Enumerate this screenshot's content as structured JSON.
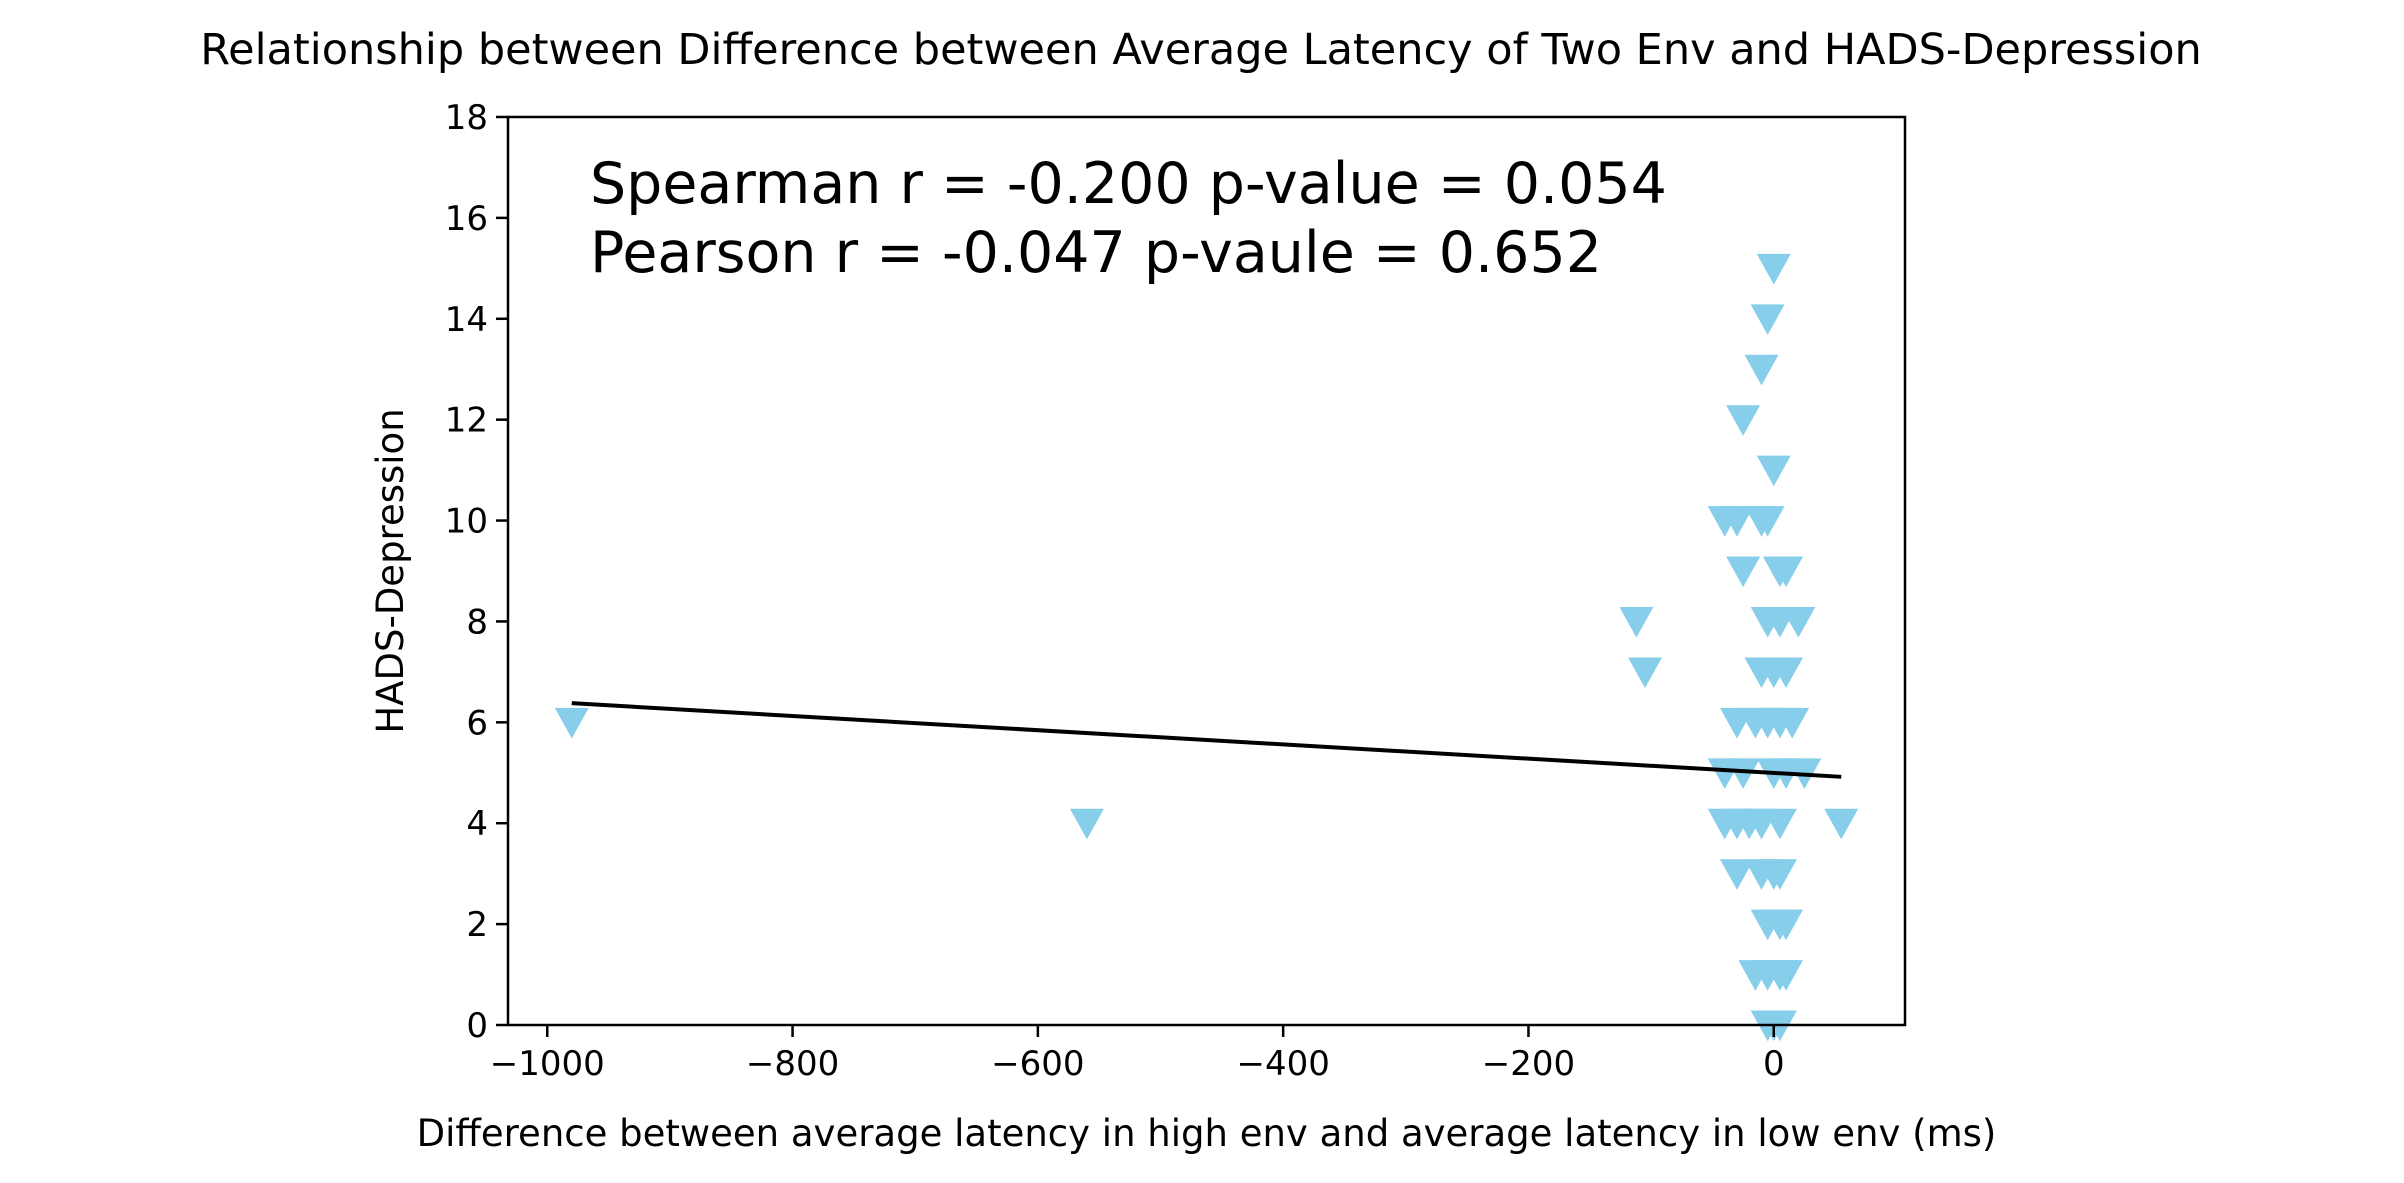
{
  "chart_data": {
    "type": "scatter",
    "title": "Relationship between Difference between Average Latency of Two Env and HADS-Depression",
    "xlabel": "Difference between average latency in high env and average latency in low env (ms)",
    "ylabel": "HADS-Depression",
    "xlim": [
      -1032,
      107
    ],
    "ylim": [
      0,
      18
    ],
    "xticks": [
      -1000,
      -800,
      -600,
      -400,
      -200,
      0
    ],
    "xtick_labels": [
      "−1000",
      "−800",
      "−600",
      "−400",
      "−200",
      "0"
    ],
    "yticks": [
      0,
      2,
      4,
      6,
      8,
      10,
      12,
      14,
      16,
      18
    ],
    "ytick_labels": [
      "0",
      "2",
      "4",
      "6",
      "8",
      "10",
      "12",
      "14",
      "16",
      "18"
    ],
    "grid": false,
    "legend": "none",
    "marker": "triangle-down",
    "marker_color": "#87ceeb",
    "line_color": "#000000",
    "annotations": [
      "Spearman r = -0.200 p-value = 0.054",
      "Pearson r = -0.047 p-vaule = 0.652"
    ],
    "regression_line": {
      "x": [
        -980,
        55
      ],
      "y": [
        6.38,
        4.92
      ]
    },
    "series": [
      {
        "points": [
          [
            -980,
            6
          ],
          [
            -560,
            4
          ],
          [
            -112,
            8
          ],
          [
            -105,
            7
          ],
          [
            0,
            15
          ],
          [
            -5,
            14
          ],
          [
            -10,
            13
          ],
          [
            -25,
            12
          ],
          [
            0,
            11
          ],
          [
            -40,
            10
          ],
          [
            -30,
            10
          ],
          [
            -10,
            10
          ],
          [
            -5,
            10
          ],
          [
            -25,
            9
          ],
          [
            5,
            9
          ],
          [
            10,
            9
          ],
          [
            -5,
            8
          ],
          [
            5,
            8
          ],
          [
            20,
            8
          ],
          [
            -10,
            7
          ],
          [
            0,
            7
          ],
          [
            10,
            7
          ],
          [
            -30,
            6
          ],
          [
            -15,
            6
          ],
          [
            -5,
            6
          ],
          [
            5,
            6
          ],
          [
            15,
            6
          ],
          [
            -40,
            5
          ],
          [
            -25,
            5
          ],
          [
            0,
            5
          ],
          [
            10,
            5
          ],
          [
            25,
            5
          ],
          [
            -40,
            4
          ],
          [
            -30,
            4
          ],
          [
            -20,
            4
          ],
          [
            -10,
            4
          ],
          [
            5,
            4
          ],
          [
            55,
            4
          ],
          [
            -30,
            3
          ],
          [
            -10,
            3
          ],
          [
            0,
            3
          ],
          [
            5,
            3
          ],
          [
            -5,
            2
          ],
          [
            5,
            2
          ],
          [
            10,
            2
          ],
          [
            -15,
            1
          ],
          [
            -5,
            1
          ],
          [
            5,
            1
          ],
          [
            10,
            1
          ],
          [
            -5,
            0
          ],
          [
            0,
            0
          ],
          [
            5,
            0
          ]
        ]
      }
    ]
  }
}
